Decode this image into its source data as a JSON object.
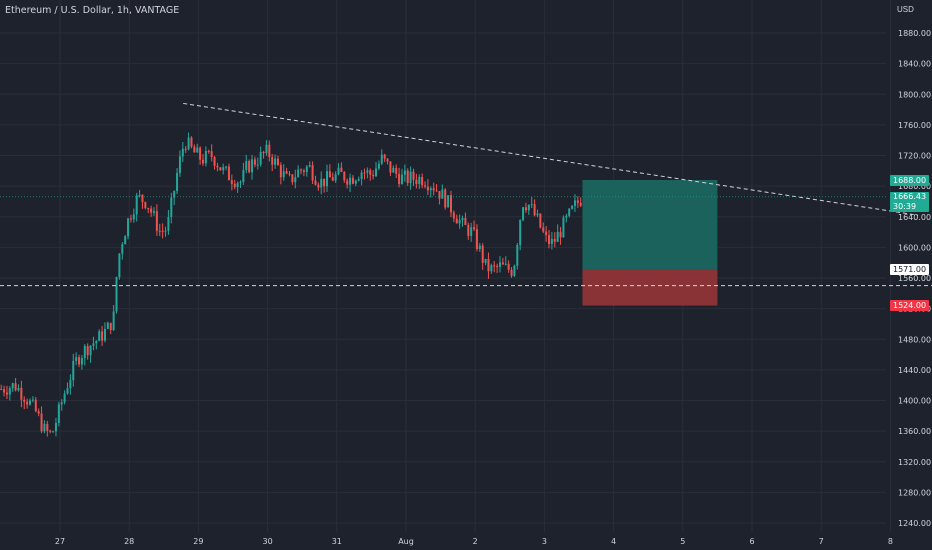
{
  "header": {
    "title": "Ethereum / U.S. Dollar, 1h, VANTAGE",
    "currency": "USD"
  },
  "price_tags": {
    "target": {
      "label": "1688.00",
      "color": "#22ab94"
    },
    "last": {
      "label": "1666.43",
      "countdown": "30:39",
      "color": "#22ab94"
    },
    "entry": {
      "label": "1571.00"
    },
    "stop": {
      "label": "1524.00",
      "color": "#f23645"
    }
  },
  "chart_data": {
    "type": "candlestick",
    "title": "Ethereum / U.S. Dollar, 1h, VANTAGE",
    "ylim": [
      1230,
      1900
    ],
    "yticks": [
      1240,
      1280,
      1320,
      1360,
      1400,
      1440,
      1480,
      1520,
      1560,
      1600,
      1640,
      1680,
      1720,
      1760,
      1800,
      1840,
      1880
    ],
    "xticks": [
      {
        "label": "27",
        "t": 27
      },
      {
        "label": "28",
        "t": 28
      },
      {
        "label": "29",
        "t": 29
      },
      {
        "label": "30",
        "t": 30
      },
      {
        "label": "31",
        "t": 31
      },
      {
        "label": "Aug",
        "t": 32
      },
      {
        "label": "2",
        "t": 33
      },
      {
        "label": "3",
        "t": 34
      },
      {
        "label": "4",
        "t": 35
      },
      {
        "label": "5",
        "t": 36
      },
      {
        "label": "6",
        "t": 37
      },
      {
        "label": "7",
        "t": 38
      },
      {
        "label": "8",
        "t": 39
      }
    ],
    "xlim": [
      26.15,
      40.0
    ],
    "series_close": [
      [
        26.15,
        1415
      ],
      [
        26.35,
        1420
      ],
      [
        26.5,
        1405
      ],
      [
        26.65,
        1385
      ],
      [
        26.78,
        1360
      ],
      [
        26.88,
        1355
      ],
      [
        26.95,
        1375
      ],
      [
        27.1,
        1420
      ],
      [
        27.25,
        1455
      ],
      [
        27.4,
        1470
      ],
      [
        27.55,
        1480
      ],
      [
        27.7,
        1495
      ],
      [
        27.78,
        1510
      ],
      [
        27.83,
        1580
      ],
      [
        27.9,
        1610
      ],
      [
        28.0,
        1640
      ],
      [
        28.12,
        1665
      ],
      [
        28.25,
        1660
      ],
      [
        28.35,
        1640
      ],
      [
        28.45,
        1620
      ],
      [
        28.55,
        1625
      ],
      [
        28.7,
        1700
      ],
      [
        28.8,
        1740
      ],
      [
        28.92,
        1725
      ],
      [
        29.05,
        1715
      ],
      [
        29.2,
        1720
      ],
      [
        29.35,
        1700
      ],
      [
        29.5,
        1690
      ],
      [
        29.62,
        1685
      ],
      [
        29.7,
        1705
      ],
      [
        29.85,
        1715
      ],
      [
        30.0,
        1725
      ],
      [
        30.15,
        1705
      ],
      [
        30.3,
        1685
      ],
      [
        30.45,
        1700
      ],
      [
        30.6,
        1705
      ],
      [
        30.75,
        1685
      ],
      [
        30.9,
        1690
      ],
      [
        31.05,
        1695
      ],
      [
        31.2,
        1690
      ],
      [
        31.35,
        1700
      ],
      [
        31.5,
        1695
      ],
      [
        31.65,
        1715
      ],
      [
        31.8,
        1700
      ],
      [
        31.95,
        1690
      ],
      [
        32.1,
        1690
      ],
      [
        32.25,
        1690
      ],
      [
        32.4,
        1680
      ],
      [
        32.55,
        1665
      ],
      [
        32.7,
        1645
      ],
      [
        32.82,
        1628
      ],
      [
        32.95,
        1620
      ],
      [
        33.05,
        1600
      ],
      [
        33.15,
        1575
      ],
      [
        33.25,
        1570
      ],
      [
        33.35,
        1575
      ],
      [
        33.45,
        1572
      ],
      [
        33.55,
        1570
      ],
      [
        33.68,
        1660
      ],
      [
        33.78,
        1655
      ],
      [
        33.9,
        1635
      ],
      [
        34.02,
        1610
      ],
      [
        34.12,
        1605
      ],
      [
        34.22,
        1620
      ],
      [
        34.35,
        1640
      ],
      [
        34.45,
        1655
      ],
      [
        34.55,
        1666
      ]
    ],
    "trendline": {
      "from": {
        "t": 28.78,
        "price": 1788
      },
      "to": {
        "t": 39.4,
        "price": 1642
      }
    },
    "horizontal_line": {
      "price": 1550
    },
    "position": {
      "type": "long",
      "start_t": 34.55,
      "end_t": 36.5,
      "entry": 1571,
      "target": 1688,
      "stop": 1524
    },
    "colors": {
      "up": "#26a69a",
      "down": "#ef5350",
      "profit": "#1b625d",
      "loss": "#8a3337"
    }
  }
}
